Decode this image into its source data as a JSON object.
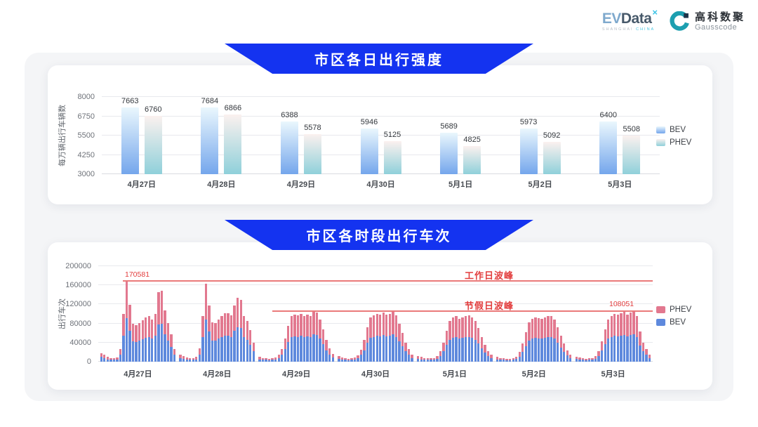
{
  "header": {
    "brand_ev": "EV",
    "brand_data": "Data",
    "brand_sup": "×",
    "brand_sub_1": "SHANGHAI",
    "brand_sub_2": "CHINA",
    "partner_cn": "高科数聚",
    "partner_en": "Gausscode"
  },
  "colors": {
    "banner_blue": "#1433f0",
    "bev_bar": "#5e89dd",
    "phev_bar": "#e2788f",
    "annotation_red": "#e23d3d",
    "peak_line_red": "#ea7a7a"
  },
  "chart_data": [
    {
      "type": "bar",
      "title": "市区各日出行强度",
      "ylabel": "每万辆出行车辆数",
      "categories": [
        "4月27日",
        "4月28日",
        "4月29日",
        "4月30日",
        "5月1日",
        "5月2日",
        "5月3日"
      ],
      "ylim": [
        3000,
        8000
      ],
      "yticks": [
        3000,
        4250,
        5500,
        6750,
        8000
      ],
      "grid": true,
      "legend_position": "right",
      "series": [
        {
          "name": "BEV",
          "gradient": [
            "#eaf7fd",
            "#74a6ec"
          ],
          "values": [
            7663,
            7684,
            6388,
            5946,
            5689,
            5973,
            6400
          ]
        },
        {
          "name": "PHEV",
          "gradient": [
            "#fbf1ef",
            "#8fd0da"
          ],
          "values": [
            6760,
            6866,
            5578,
            5125,
            4825,
            5092,
            5508
          ]
        }
      ]
    },
    {
      "type": "bar-stacked",
      "title": "市区各时段出行车次",
      "ylabel": "出行车次",
      "categories": [
        "4月27日",
        "4月28日",
        "4月29日",
        "4月30日",
        "5月1日",
        "5月2日",
        "5月3日"
      ],
      "ylim": [
        0,
        200000
      ],
      "yticks": [
        0,
        40000,
        80000,
        120000,
        160000,
        200000
      ],
      "grid": true,
      "legend_position": "right",
      "x_unit": "hour 0-23 per day",
      "annotations": {
        "workday": {
          "label": "工作日波峰",
          "value": 170581,
          "value_text": "170581"
        },
        "holiday": {
          "label": "节假日波峰",
          "value": 108051,
          "value_text": "108051"
        }
      },
      "series": [
        {
          "name": "PHEV",
          "color": "#e2788f",
          "values_by_day": [
            [
              8000,
              7000,
              5000,
              4000,
              4000,
              4000,
              12000,
              46000,
              79581,
              55000,
              37000,
              35000,
              37000,
              40000,
              43000,
              44000,
              41000,
              46000,
              67000,
              69000,
              50000,
              37000,
              26000,
              12000
            ],
            [
              7000,
              6000,
              4000,
              4000,
              4000,
              5000,
              13000,
              44000,
              76000,
              54000,
              38000,
              37000,
              40000,
              44000,
              46000,
              47000,
              45000,
              54000,
              62000,
              60000,
              44000,
              39000,
              30000,
              18000
            ],
            [
              5000,
              4000,
              3000,
              3000,
              3000,
              4000,
              6000,
              12000,
              22000,
              34000,
              44000,
              46000,
              45000,
              46000,
              44000,
              45000,
              44000,
              48000,
              47000,
              40000,
              31000,
              21000,
              13000,
              7000
            ],
            [
              6000,
              4000,
              3000,
              3000,
              3000,
              4000,
              6000,
              11000,
              21000,
              33000,
              42000,
              45000,
              46000,
              46000,
              47000,
              45000,
              46000,
              48000,
              45000,
              37000,
              28000,
              18000,
              12000,
              7000
            ],
            [
              6000,
              5000,
              4000,
              3000,
              3000,
              4000,
              6000,
              10000,
              18000,
              30000,
              39000,
              42000,
              44000,
              41000,
              43000,
              44000,
              45000,
              42000,
              39000,
              32000,
              24000,
              16000,
              10000,
              6000
            ],
            [
              5000,
              4000,
              3000,
              3000,
              3000,
              4000,
              5000,
              9000,
              17000,
              29000,
              38000,
              41000,
              42000,
              42000,
              41000,
              43000,
              44000,
              44000,
              40000,
              33000,
              25000,
              17000,
              11000,
              6000
            ],
            [
              5000,
              4000,
              3000,
              3000,
              3000,
              4000,
              6000,
              10000,
              19000,
              31000,
              40000,
              44000,
              46000,
              45000,
              46000,
              48000,
              46000,
              47000,
              50051,
              44000,
              29000,
              18000,
              12000,
              7000
            ]
          ]
        },
        {
          "name": "BEV",
          "color": "#5e89dd",
          "values_by_day": [
            [
              10000,
              8000,
              5000,
              4000,
              4000,
              5000,
              14000,
              54000,
              91000,
              64000,
              43000,
              41000,
              44000,
              47000,
              50000,
              52000,
              48000,
              54000,
              78000,
              80000,
              58000,
              44000,
              31000,
              15000
            ],
            [
              8000,
              6000,
              5000,
              4000,
              4000,
              5000,
              15000,
              51000,
              88000,
              63000,
              44000,
              44000,
              48000,
              51000,
              55000,
              55000,
              52000,
              64000,
              72000,
              70000,
              52000,
              46000,
              36000,
              22000
            ],
            [
              5000,
              4000,
              4000,
              3000,
              4000,
              5000,
              8000,
              15000,
              26000,
              41000,
              51000,
              53000,
              52000,
              54000,
              52000,
              53000,
              52000,
              57000,
              56000,
              48000,
              37000,
              24000,
              15000,
              9000
            ],
            [
              6000,
              5000,
              4000,
              3000,
              4000,
              5000,
              7000,
              14000,
              24000,
              39000,
              50000,
              52000,
              54000,
              53000,
              56000,
              53000,
              54000,
              57000,
              52000,
              43000,
              32000,
              22000,
              14000,
              8000
            ],
            [
              6000,
              5000,
              4000,
              4000,
              4000,
              4000,
              6000,
              12000,
              22000,
              35000,
              46000,
              50000,
              51000,
              49000,
              50000,
              51000,
              52000,
              50000,
              46000,
              38000,
              28000,
              19000,
              12000,
              8000
            ],
            [
              5000,
              4000,
              4000,
              3000,
              3000,
              4000,
              6000,
              11000,
              21000,
              33000,
              44000,
              49000,
              50000,
              49000,
              49000,
              50000,
              51000,
              52000,
              48000,
              39000,
              30000,
              21000,
              13000,
              8000
            ],
            [
              6000,
              5000,
              4000,
              3000,
              4000,
              4000,
              6000,
              12000,
              23000,
              37000,
              48000,
              52000,
              54000,
              53000,
              55000,
              56000,
              53000,
              56000,
              58000,
              51000,
              34000,
              22000,
              15000,
              8000
            ]
          ]
        }
      ]
    }
  ]
}
